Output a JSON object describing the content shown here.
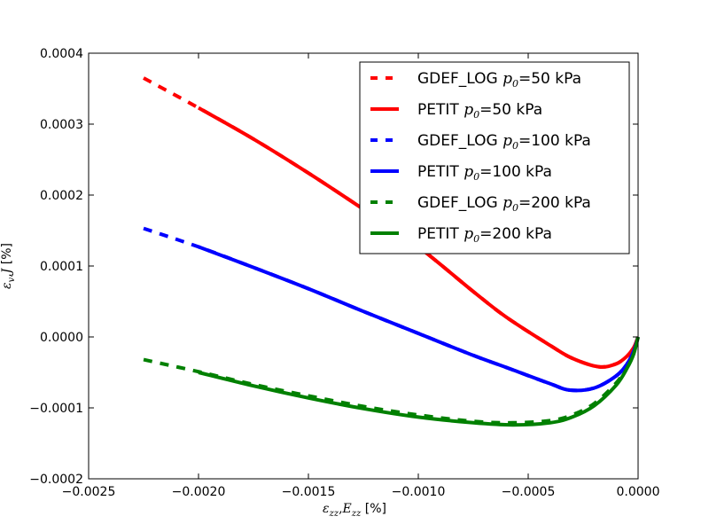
{
  "chart_data": {
    "type": "line",
    "title": "",
    "xlabel": "ε_zz,E_zz [%]",
    "xlabel_parts": {
      "a": "ε",
      "a_sub": "zz",
      "sep": ",",
      "b": "E",
      "b_sub": "zz",
      "unit": " [%]"
    },
    "ylabel": "ε_v,J [%]",
    "ylabel_parts": {
      "a": "ε",
      "a_sub": "v",
      "sep": ",",
      "b": "J",
      "unit": " [%]"
    },
    "xlim": [
      -0.0025,
      0.0
    ],
    "ylim": [
      -0.0002,
      0.0004
    ],
    "xticks": [
      -0.0025,
      -0.002,
      -0.0015,
      -0.001,
      -0.0005,
      0.0
    ],
    "xtick_labels": [
      "−0.0025",
      "−0.0020",
      "−0.0015",
      "−0.0010",
      "−0.0005",
      "0.0000"
    ],
    "yticks": [
      -0.0002,
      -0.0001,
      0.0,
      0.0001,
      0.0002,
      0.0003,
      0.0004
    ],
    "ytick_labels": [
      "−0.0002",
      "−0.0001",
      "0.0000",
      "0.0001",
      "0.0002",
      "0.0003",
      "0.0004"
    ],
    "grid": false,
    "legend_position": "top-right",
    "series": [
      {
        "name": "GDEF_LOG p0=50 kPa",
        "label_prefix": "GDEF_LOG ",
        "label_suffix": "=50 kPa",
        "color": "#ff0000",
        "style": "dashed",
        "x": [
          -0.00225,
          -0.002,
          -0.00175,
          -0.0015,
          -0.00125,
          -0.001,
          -0.00075,
          -0.0006,
          -0.0004,
          -0.0003,
          -0.00018,
          -0.0001,
          -5e-05,
          -2e-05,
          0.0
        ],
        "y": [
          0.000365,
          0.000323,
          0.000279,
          0.000231,
          0.00018,
          0.000127,
          6.4e-05,
          2.8e-05,
          -1.2e-05,
          -3e-05,
          -4.2e-05,
          -3.8e-05,
          -2.7e-05,
          -1.5e-05,
          0.0
        ]
      },
      {
        "name": "PETIT p0=50 kPa",
        "label_prefix": "PETIT ",
        "label_suffix": "=50 kPa",
        "color": "#ff0000",
        "style": "solid",
        "x": [
          -0.002,
          -0.00175,
          -0.0015,
          -0.00125,
          -0.001,
          -0.00075,
          -0.0006,
          -0.0004,
          -0.0003,
          -0.00018,
          -0.0001,
          -5e-05,
          -2e-05,
          0.0
        ],
        "y": [
          0.000323,
          0.000279,
          0.000231,
          0.00018,
          0.000127,
          6.4e-05,
          2.8e-05,
          -1.2e-05,
          -3e-05,
          -4.2e-05,
          -3.8e-05,
          -2.7e-05,
          -1.5e-05,
          0.0
        ]
      },
      {
        "name": "GDEF_LOG p0=100 kPa",
        "label_prefix": "GDEF_LOG ",
        "label_suffix": "=100 kPa",
        "color": "#0000ff",
        "style": "dashed",
        "x": [
          -0.00225,
          -0.002,
          -0.00175,
          -0.0015,
          -0.00125,
          -0.001,
          -0.00075,
          -0.0006,
          -0.0004,
          -0.00031,
          -0.0002,
          -0.0001,
          -5e-05,
          -2e-05,
          0.0
        ],
        "y": [
          0.000153,
          0.000127,
          9.8e-05,
          6.8e-05,
          3.6e-05,
          5e-06,
          -2.6e-05,
          -4.3e-05,
          -6.6e-05,
          -7.5e-05,
          -7.2e-05,
          -5.5e-05,
          -3.8e-05,
          -2e-05,
          0.0
        ]
      },
      {
        "name": "PETIT p0=100 kPa",
        "label_prefix": "PETIT ",
        "label_suffix": "=100 kPa",
        "color": "#0000ff",
        "style": "solid",
        "x": [
          -0.002,
          -0.00175,
          -0.0015,
          -0.00125,
          -0.001,
          -0.00075,
          -0.0006,
          -0.0004,
          -0.00031,
          -0.0002,
          -0.0001,
          -5e-05,
          -2e-05,
          0.0
        ],
        "y": [
          0.000127,
          9.8e-05,
          6.8e-05,
          3.6e-05,
          5e-06,
          -2.6e-05,
          -4.3e-05,
          -6.6e-05,
          -7.5e-05,
          -7.2e-05,
          -5.5e-05,
          -3.8e-05,
          -2e-05,
          0.0
        ]
      },
      {
        "name": "GDEF_LOG p0=200 kPa",
        "label_prefix": "GDEF_LOG ",
        "label_suffix": "=200 kPa",
        "color": "#008000",
        "style": "dashed",
        "x": [
          -0.00225,
          -0.002,
          -0.00175,
          -0.0015,
          -0.00125,
          -0.001,
          -0.00075,
          -0.00057,
          -0.0004,
          -0.0003,
          -0.0002,
          -0.0001,
          -5e-05,
          -2e-05,
          0.0
        ],
        "y": [
          -3.2e-05,
          -4.9e-05,
          -6.7e-05,
          -8.3e-05,
          -9.8e-05,
          -0.00011,
          -0.000119,
          -0.000121,
          -0.000118,
          -0.00011,
          -9.4e-05,
          -6.5e-05,
          -4.2e-05,
          -2.2e-05,
          0.0
        ]
      },
      {
        "name": "PETIT p0=200 kPa",
        "label_prefix": "PETIT ",
        "label_suffix": "=200 kPa",
        "color": "#008000",
        "style": "solid",
        "x": [
          -0.002,
          -0.00175,
          -0.0015,
          -0.00125,
          -0.001,
          -0.00075,
          -0.00057,
          -0.0004,
          -0.0003,
          -0.0002,
          -0.0001,
          -5e-05,
          -2e-05,
          0.0
        ],
        "y": [
          -5e-05,
          -6.9e-05,
          -8.6e-05,
          -0.000101,
          -0.000113,
          -0.000121,
          -0.000124,
          -0.000121,
          -0.000113,
          -9.7e-05,
          -6.8e-05,
          -4.4e-05,
          -2.4e-05,
          0.0
        ]
      }
    ]
  }
}
